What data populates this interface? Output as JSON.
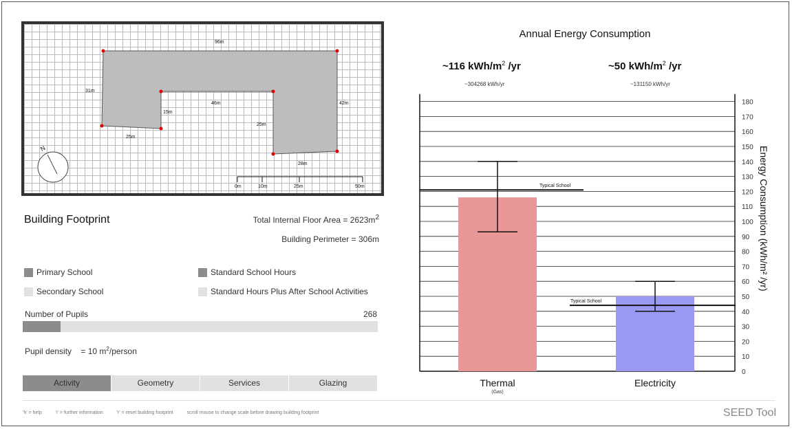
{
  "footprint": {
    "title": "Building Footprint",
    "dims": {
      "top": "96m",
      "left": "31m",
      "inner_left": "15m",
      "inner_top": "46m",
      "inner_right": "25m",
      "right": "42m",
      "bottom_left": "25m",
      "bottom_right": "28m"
    },
    "scale_labels": [
      "0m",
      "10m",
      "25m",
      "50m"
    ],
    "compass_label": "N",
    "area_text": "Total Internal Floor Area = 2623m",
    "area_sup": "2",
    "perimeter_text": "Building Perimeter = 306m"
  },
  "options": {
    "primary": "Primary School",
    "secondary": "Secondary School",
    "standard_hours": "Standard School Hours",
    "after_school": "Standard Hours Plus After School Activities"
  },
  "pupils": {
    "label": "Number of Pupils",
    "value": "268",
    "slider_fraction": 0.107
  },
  "density": {
    "label": "Pupil density",
    "value": "= 10 m",
    "sup": "2",
    "unit": "/person"
  },
  "tabs": [
    "Activity",
    "Geometry",
    "Services",
    "Glazing"
  ],
  "help": [
    "'h' = help",
    "'i' = further information",
    "'r' = reset building footprint",
    "scroll mouse to change scale before drawing building footprint"
  ],
  "brand": "SEED Tool",
  "energy": {
    "title": "Annual Energy Consumption",
    "thermal_big": "~116 kWh/m",
    "thermal_big_sup": "2",
    "thermal_big_unit": " /yr",
    "thermal_small": "~304268 kWh/yr",
    "elec_big": "~50 kWh/m",
    "elec_big_sup": "2",
    "elec_big_unit": " /yr",
    "elec_small": "~131150 kWh/yr",
    "ylabel": "Energy Consumption (kWh/m² /yr)"
  },
  "chart_data": {
    "type": "bar",
    "categories": [
      "Thermal",
      "Electricity"
    ],
    "category_sublabels": [
      "(Gas)",
      ""
    ],
    "values": [
      116,
      50
    ],
    "error_low": [
      93,
      40
    ],
    "error_high": [
      140,
      60
    ],
    "colors": [
      "#e89696",
      "#9a9af5"
    ],
    "typical": [
      {
        "label": "Typical School",
        "value": 121
      },
      {
        "label": "Typical School",
        "value": 44
      }
    ],
    "ylim": [
      0,
      190
    ],
    "yticks": [
      0,
      10,
      20,
      30,
      40,
      50,
      60,
      70,
      80,
      90,
      100,
      110,
      120,
      130,
      140,
      150,
      160,
      170,
      180
    ],
    "grid": true
  }
}
